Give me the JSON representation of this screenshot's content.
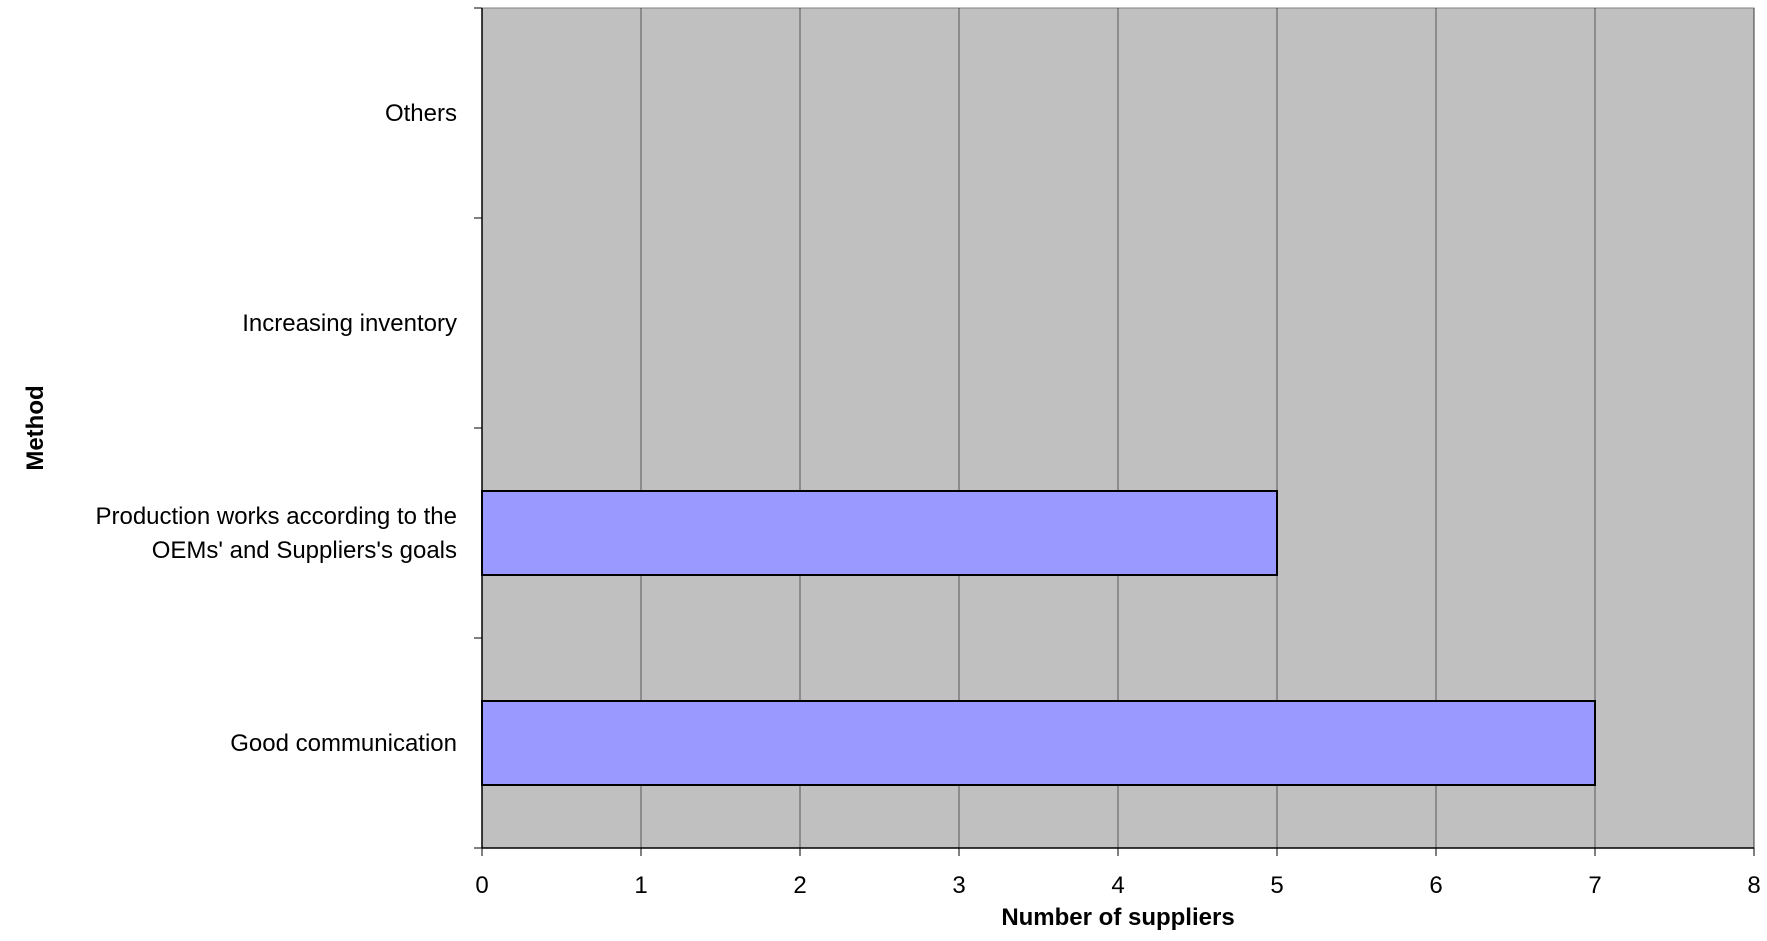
{
  "chart_data": {
    "type": "bar",
    "orientation": "horizontal",
    "categories": [
      "Good communication",
      "Production works according to the OEMs' and Suppliers's goals",
      "Increasing inventory",
      "Others"
    ],
    "category_label_lines": [
      [
        "Good communication"
      ],
      [
        "Production works according to the",
        "OEMs' and Suppliers's goals"
      ],
      [
        "Increasing inventory"
      ],
      [
        "Others"
      ]
    ],
    "values": [
      7,
      5,
      0,
      0
    ],
    "xlabel": "Number of suppliers",
    "ylabel": "Method",
    "xlim": [
      0,
      8
    ],
    "xticks": [
      "0",
      "1",
      "2",
      "3",
      "4",
      "5",
      "6",
      "7",
      "8"
    ],
    "grid": "vertical",
    "legend": "none",
    "colors": {
      "bar_fill": "#9999ff",
      "bar_stroke": "#000000",
      "plot_background": "#c0c0c0",
      "gridline": "#000000"
    }
  }
}
